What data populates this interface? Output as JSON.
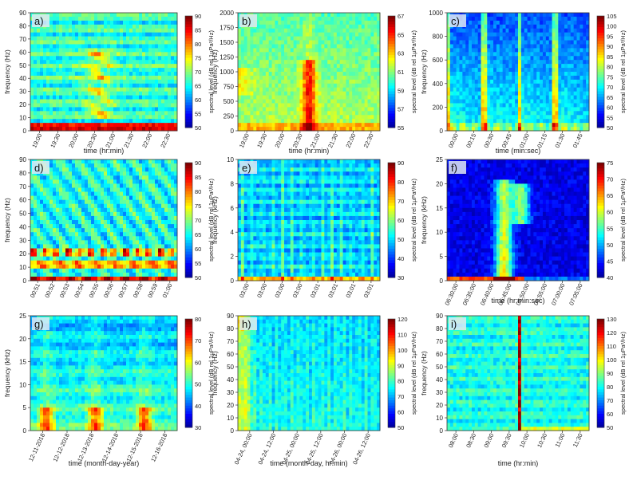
{
  "chart_data": [
    {
      "type": "heatmap",
      "panel_label": "a)",
      "ylabel": "frequency (Hz)",
      "xlabel": "time (hr:min)",
      "ylim": [
        0,
        90
      ],
      "yticks": [
        0,
        10,
        20,
        30,
        40,
        50,
        60,
        70,
        80,
        90
      ],
      "xticks": [
        "19:00",
        "19:30",
        "20:00",
        "20:30",
        "21:00",
        "21:30",
        "22:00",
        "22:30"
      ],
      "colorbar": {
        "label": "spectral level (dB rel 1µPa²/Hz)",
        "min": 50,
        "max": 90,
        "ticks": [
          50,
          55,
          60,
          65,
          70,
          75,
          80,
          85,
          90
        ]
      }
    },
    {
      "type": "heatmap",
      "panel_label": "b)",
      "ylabel": "frequency (Hz)",
      "xlabel": "time (hr:min)",
      "ylim": [
        0,
        2000
      ],
      "yticks": [
        0,
        250,
        500,
        750,
        1000,
        1250,
        1500,
        1750,
        2000
      ],
      "xticks": [
        "19:00",
        "19:30",
        "20:00",
        "20:30",
        "21:00",
        "21:30",
        "22:00",
        "22:30"
      ],
      "colorbar": {
        "label": "spectral level (dB rel 1µPa²/Hz)",
        "min": 55,
        "max": 67,
        "ticks": [
          55,
          57,
          59,
          61,
          63,
          65,
          67
        ]
      }
    },
    {
      "type": "heatmap",
      "panel_label": "c)",
      "ylabel": "frequency (Hz)",
      "xlabel": "time (min:sec)",
      "ylim": [
        0,
        1000
      ],
      "yticks": [
        0,
        200,
        400,
        600,
        800,
        1000
      ],
      "xticks": [
        "00:00",
        "00:15",
        "00:30",
        "00:45",
        "01:00",
        "01:15",
        "01:30",
        "01:45"
      ],
      "colorbar": {
        "label": "spectral level (dB rel 1µPa²/Hz)",
        "min": 50,
        "max": 105,
        "ticks": [
          50,
          55,
          60,
          65,
          70,
          75,
          80,
          85,
          90,
          95,
          100,
          105
        ]
      }
    },
    {
      "type": "heatmap",
      "panel_label": "d)",
      "ylabel": "frequency (Hz)",
      "xlabel": "",
      "ylim": [
        0,
        90
      ],
      "yticks": [
        0,
        10,
        20,
        30,
        40,
        50,
        60,
        70,
        80,
        90
      ],
      "xticks": [
        "00:51",
        "00:52",
        "00:53",
        "00:54",
        "00:55",
        "00:56",
        "00:57",
        "00:58",
        "00:59",
        "01:00"
      ],
      "colorbar": {
        "label": "spectral level (dB rel 1µPa²/Hz)",
        "min": 50,
        "max": 90,
        "ticks": [
          50,
          55,
          60,
          65,
          70,
          75,
          80,
          85,
          90
        ]
      }
    },
    {
      "type": "heatmap",
      "panel_label": "e)",
      "ylabel": "frequency (kHz)",
      "xlabel": "",
      "ylim": [
        0,
        10
      ],
      "yticks": [
        0,
        2,
        4,
        6,
        8,
        10
      ],
      "xticks": [
        "03:00",
        "03:00",
        "03:00",
        "03:00",
        "03:01",
        "03:01",
        "03:01",
        "03:01"
      ],
      "colorbar": {
        "label": "spectral level (dB rel 1µPa²/Hz)",
        "min": 30,
        "max": 90,
        "ticks": [
          30,
          40,
          50,
          60,
          70,
          80,
          90
        ]
      }
    },
    {
      "type": "heatmap",
      "panel_label": "f)",
      "ylabel": "frequency (kHz)",
      "xlabel": "time (hr:min:sec)",
      "ylim": [
        0,
        25
      ],
      "yticks": [
        0,
        5,
        10,
        15,
        20,
        25
      ],
      "xticks": [
        "06:30:00",
        "06:35:00",
        "06:40:00",
        "06:45:00",
        "06:50:00",
        "06:55:00",
        "07:00:00",
        "07:05:00"
      ],
      "colorbar": {
        "label": "spectral level (dB rel 1µPa²/Hz)",
        "min": 40,
        "max": 75,
        "ticks": [
          40,
          45,
          50,
          55,
          60,
          65,
          70,
          75
        ]
      }
    },
    {
      "type": "heatmap",
      "panel_label": "g)",
      "ylabel": "frequency (kHz)",
      "xlabel": "time (month-day-year)",
      "ylim": [
        0,
        25
      ],
      "yticks": [
        0,
        5,
        10,
        15,
        20,
        25
      ],
      "xticks": [
        "12-11-2018",
        "12-12-2018",
        "12-13-2018",
        "12-14-2018",
        "12-15-2018",
        "12-16-2018"
      ],
      "colorbar": {
        "label": "spectral level (dB rel 1µPa²/Hz)",
        "min": 30,
        "max": 80,
        "ticks": [
          30,
          40,
          50,
          60,
          70,
          80
        ]
      }
    },
    {
      "type": "heatmap",
      "panel_label": "h)",
      "ylabel": "frequency (Hz)",
      "xlabel": "time (month-day, hr:min)",
      "ylim": [
        0,
        90
      ],
      "yticks": [
        0,
        10,
        20,
        30,
        40,
        50,
        60,
        70,
        80,
        90
      ],
      "xticks": [
        "04-24, 00:00",
        "04-24, 12:00",
        "04-25, 00:00",
        "04-25, 12:00",
        "04-26, 00:00",
        "04-26, 12:00"
      ],
      "colorbar": {
        "label": "spectral level (dB rel 1µPa²/Hz)",
        "min": 50,
        "max": 120,
        "ticks": [
          50,
          60,
          70,
          80,
          90,
          100,
          110,
          120
        ]
      }
    },
    {
      "type": "heatmap",
      "panel_label": "i)",
      "ylabel": "frequency (Hz)",
      "xlabel": "time (hr:min)",
      "ylim": [
        0,
        90
      ],
      "yticks": [
        0,
        10,
        20,
        30,
        40,
        50,
        60,
        70,
        80,
        90
      ],
      "xticks": [
        "08:00",
        "08:30",
        "09:00",
        "09:30",
        "10:00",
        "10:30",
        "11:00",
        "11:30"
      ],
      "colorbar": {
        "label": "spectral level (dB rel 1µPa²/Hz)",
        "min": 50,
        "max": 130,
        "ticks": [
          50,
          60,
          70,
          80,
          90,
          100,
          110,
          120,
          130
        ]
      }
    }
  ],
  "colormap": [
    "#00008f",
    "#0000ff",
    "#0080ff",
    "#00ffff",
    "#80ff80",
    "#ffff00",
    "#ff8000",
    "#ff0000",
    "#800000"
  ]
}
